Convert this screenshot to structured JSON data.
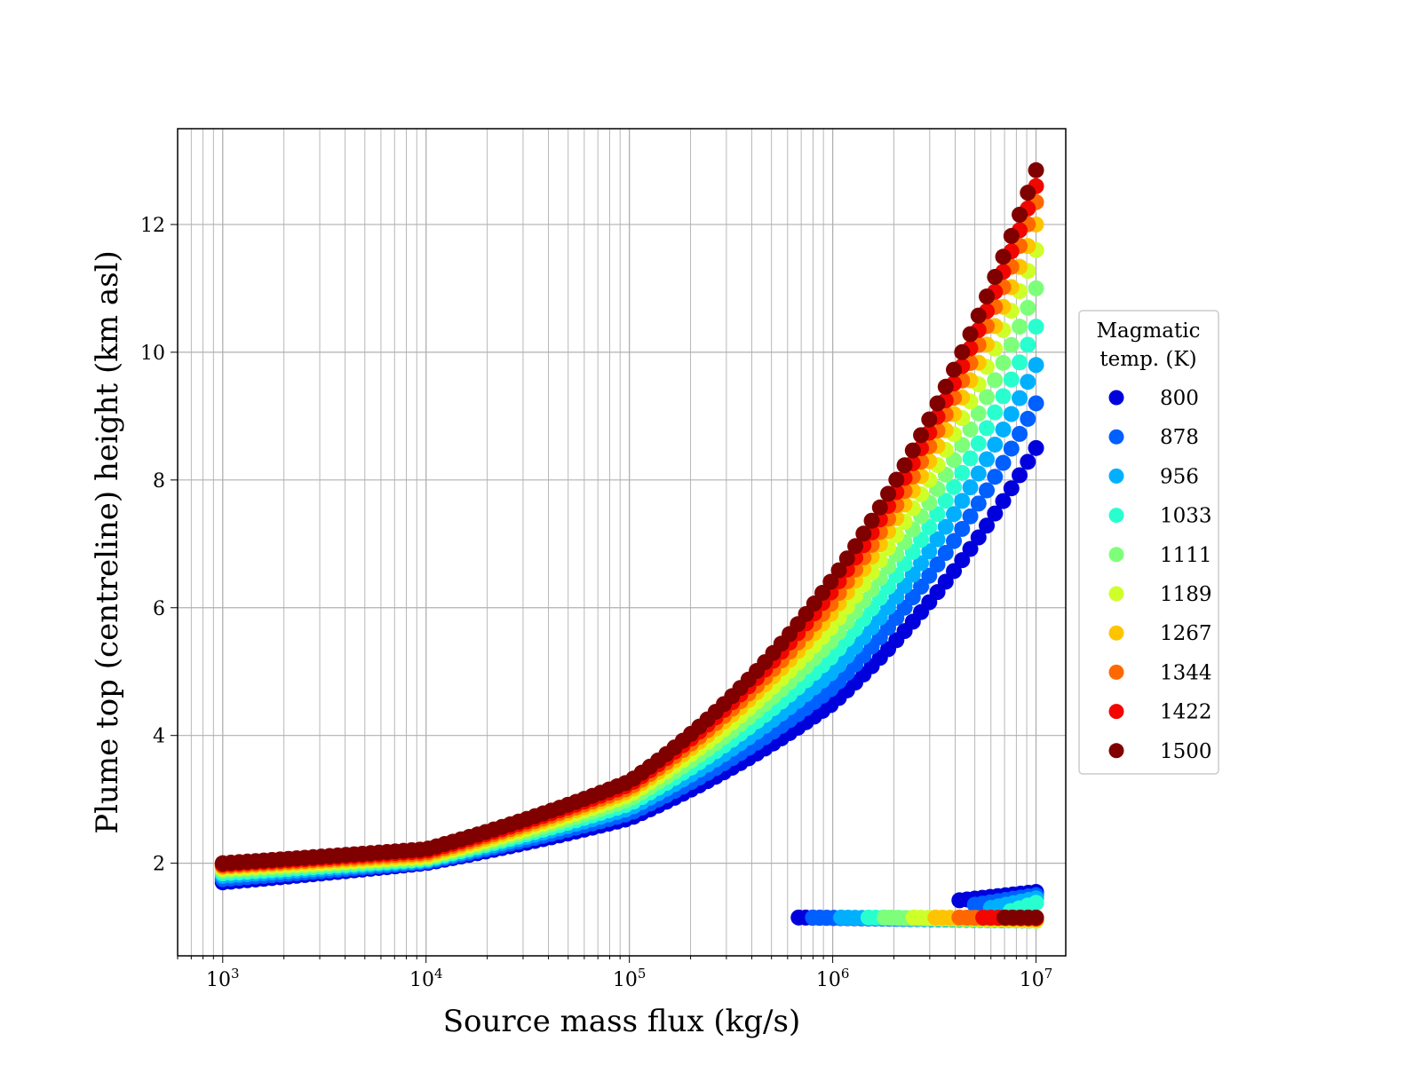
{
  "chart_data": {
    "type": "scatter",
    "xlabel": "Source mass flux (kg/s)",
    "ylabel": "Plume top (centreline) height (km asl)",
    "xscale": "log",
    "xlim": [
      600,
      14000000
    ],
    "ylim": [
      0.55,
      13.5
    ],
    "x_tick_labels": [
      {
        "base": "10",
        "exp": "3",
        "value": 1000
      },
      {
        "base": "10",
        "exp": "4",
        "value": 10000
      },
      {
        "base": "10",
        "exp": "5",
        "value": 100000
      },
      {
        "base": "10",
        "exp": "6",
        "value": 1000000
      },
      {
        "base": "10",
        "exp": "7",
        "value": 10000000
      }
    ],
    "y_ticks": [
      2,
      4,
      6,
      8,
      10,
      12
    ],
    "grid": true,
    "legend": {
      "title": "Magmatic\ntemp. (K)",
      "title_lines": [
        "Magmatic",
        "temp. (K)"
      ],
      "placement": "right-outside",
      "entries": [
        "800",
        "878",
        "956",
        "1033",
        "1111",
        "1189",
        "1267",
        "1344",
        "1422",
        "1500"
      ]
    },
    "series": [
      {
        "name": "800",
        "color": "#0000dd",
        "x": [
          1000,
          10000,
          100000,
          1000000,
          10000000
        ],
        "y": [
          1.7,
          2.0,
          2.7,
          4.5,
          8.5
        ],
        "low_branch": {
          "x": [
            680000,
            10000000
          ],
          "y": [
            1.15,
            1.1
          ]
        },
        "high_branch": {
          "x": [
            4200000,
            10000000
          ],
          "y": [
            1.42,
            1.55
          ]
        }
      },
      {
        "name": "878",
        "color": "#005fff",
        "x": [
          1000,
          10000,
          100000,
          1000000,
          10000000
        ],
        "y": [
          1.75,
          2.02,
          2.78,
          4.75,
          9.2
        ],
        "low_branch": {
          "x": [
            800000,
            10000000
          ],
          "y": [
            1.15,
            1.1
          ]
        },
        "high_branch": {
          "x": [
            5000000,
            10000000
          ],
          "y": [
            1.35,
            1.5
          ]
        }
      },
      {
        "name": "956",
        "color": "#00b0ff",
        "x": [
          1000,
          10000,
          100000,
          1000000,
          10000000
        ],
        "y": [
          1.8,
          2.04,
          2.86,
          5.0,
          9.8
        ],
        "low_branch": {
          "x": [
            1100000,
            10000000
          ],
          "y": [
            1.15,
            1.1
          ]
        },
        "high_branch": {
          "x": [
            6000000,
            10000000
          ],
          "y": [
            1.3,
            1.45
          ]
        }
      },
      {
        "name": "1033",
        "color": "#29ffce",
        "x": [
          1000,
          10000,
          100000,
          1000000,
          10000000
        ],
        "y": [
          1.84,
          2.06,
          2.93,
          5.25,
          10.4
        ],
        "low_branch": {
          "x": [
            1500000,
            10000000
          ],
          "y": [
            1.15,
            1.1
          ]
        },
        "high_branch": {
          "x": [
            7500000,
            10000000
          ],
          "y": [
            1.25,
            1.38
          ]
        }
      },
      {
        "name": "1111",
        "color": "#7dff7a",
        "x": [
          1000,
          10000,
          100000,
          1000000,
          10000000
        ],
        "y": [
          1.88,
          2.08,
          3.0,
          5.5,
          11.0
        ],
        "low_branch": {
          "x": [
            1800000,
            10000000
          ],
          "y": [
            1.15,
            1.1
          ]
        }
      },
      {
        "name": "1189",
        "color": "#ceff29",
        "x": [
          1000,
          10000,
          100000,
          1000000,
          10000000
        ],
        "y": [
          1.91,
          2.1,
          3.07,
          5.72,
          11.6
        ],
        "low_branch": {
          "x": [
            2500000,
            10000000
          ],
          "y": [
            1.15,
            1.1
          ]
        }
      },
      {
        "name": "1267",
        "color": "#ffc400",
        "x": [
          1000,
          10000,
          100000,
          1000000,
          10000000
        ],
        "y": [
          1.94,
          2.13,
          3.13,
          5.94,
          12.0
        ],
        "low_branch": {
          "x": [
            3200000,
            10000000
          ],
          "y": [
            1.15,
            1.12
          ]
        }
      },
      {
        "name": "1344",
        "color": "#ff6800",
        "x": [
          1000,
          10000,
          100000,
          1000000,
          10000000
        ],
        "y": [
          1.96,
          2.16,
          3.18,
          6.1,
          12.35
        ],
        "low_branch": {
          "x": [
            4200000,
            10000000
          ],
          "y": [
            1.15,
            1.13
          ]
        }
      },
      {
        "name": "1422",
        "color": "#f10700",
        "x": [
          1000,
          10000,
          100000,
          1000000,
          10000000
        ],
        "y": [
          1.98,
          2.19,
          3.23,
          6.28,
          12.6
        ],
        "low_branch": {
          "x": [
            5500000,
            10000000
          ],
          "y": [
            1.15,
            1.14
          ]
        }
      },
      {
        "name": "1500",
        "color": "#800000",
        "x": [
          1000,
          10000,
          100000,
          1000000,
          10000000
        ],
        "y": [
          2.0,
          2.22,
          3.28,
          6.45,
          12.85
        ],
        "low_branch": {
          "x": [
            7000000,
            10000000
          ],
          "y": [
            1.15,
            1.15
          ]
        }
      }
    ]
  }
}
